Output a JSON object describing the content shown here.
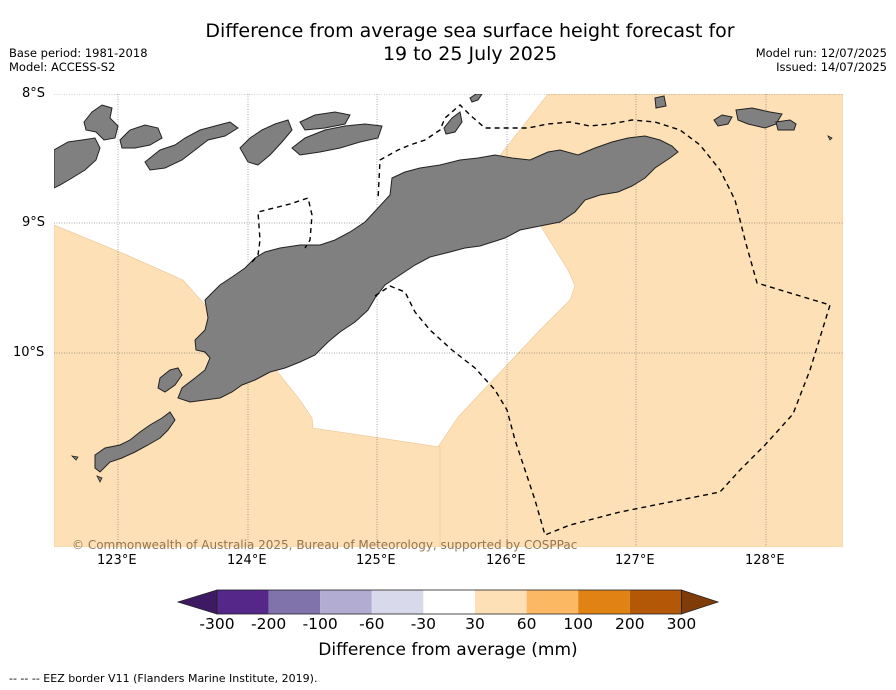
{
  "title_line1": "Difference from average sea surface height forecast for",
  "title_line2": "19 to 25 July 2025",
  "base_period": "Base period: 1981-2018",
  "model": "Model: ACCESS-S2",
  "model_run": "Model run: 12/07/2025",
  "issued": "Issued: 14/07/2025",
  "lat_labels": [
    "8°S",
    "9°S",
    "10°S"
  ],
  "lon_labels": [
    "123°E",
    "124°E",
    "125°E",
    "126°E",
    "127°E",
    "128°E"
  ],
  "copyright": "© Commonwealth of Australia 2025, Bureau of Meteorology, supported by COSPPac",
  "colorbar": {
    "ticks": [
      "-300",
      "-200",
      "-100",
      "-60",
      "-30",
      "30",
      "60",
      "100",
      "200",
      "300"
    ],
    "colors": [
      "#3d1a63",
      "#542788",
      "#8073ac",
      "#b2abd2",
      "#d8daeb",
      "#ffffff",
      "#fee0b6",
      "#fdb863",
      "#e08214",
      "#b35806",
      "#7f3b08"
    ],
    "title": "Difference from average (mm)"
  },
  "colors": {
    "land": "#808080",
    "anomaly_30_60": "#fee0b6",
    "neutral": "#ffffff"
  },
  "footnote": "--  --  -- EEZ border V11 (Flanders Marine Institute, 2019)."
}
